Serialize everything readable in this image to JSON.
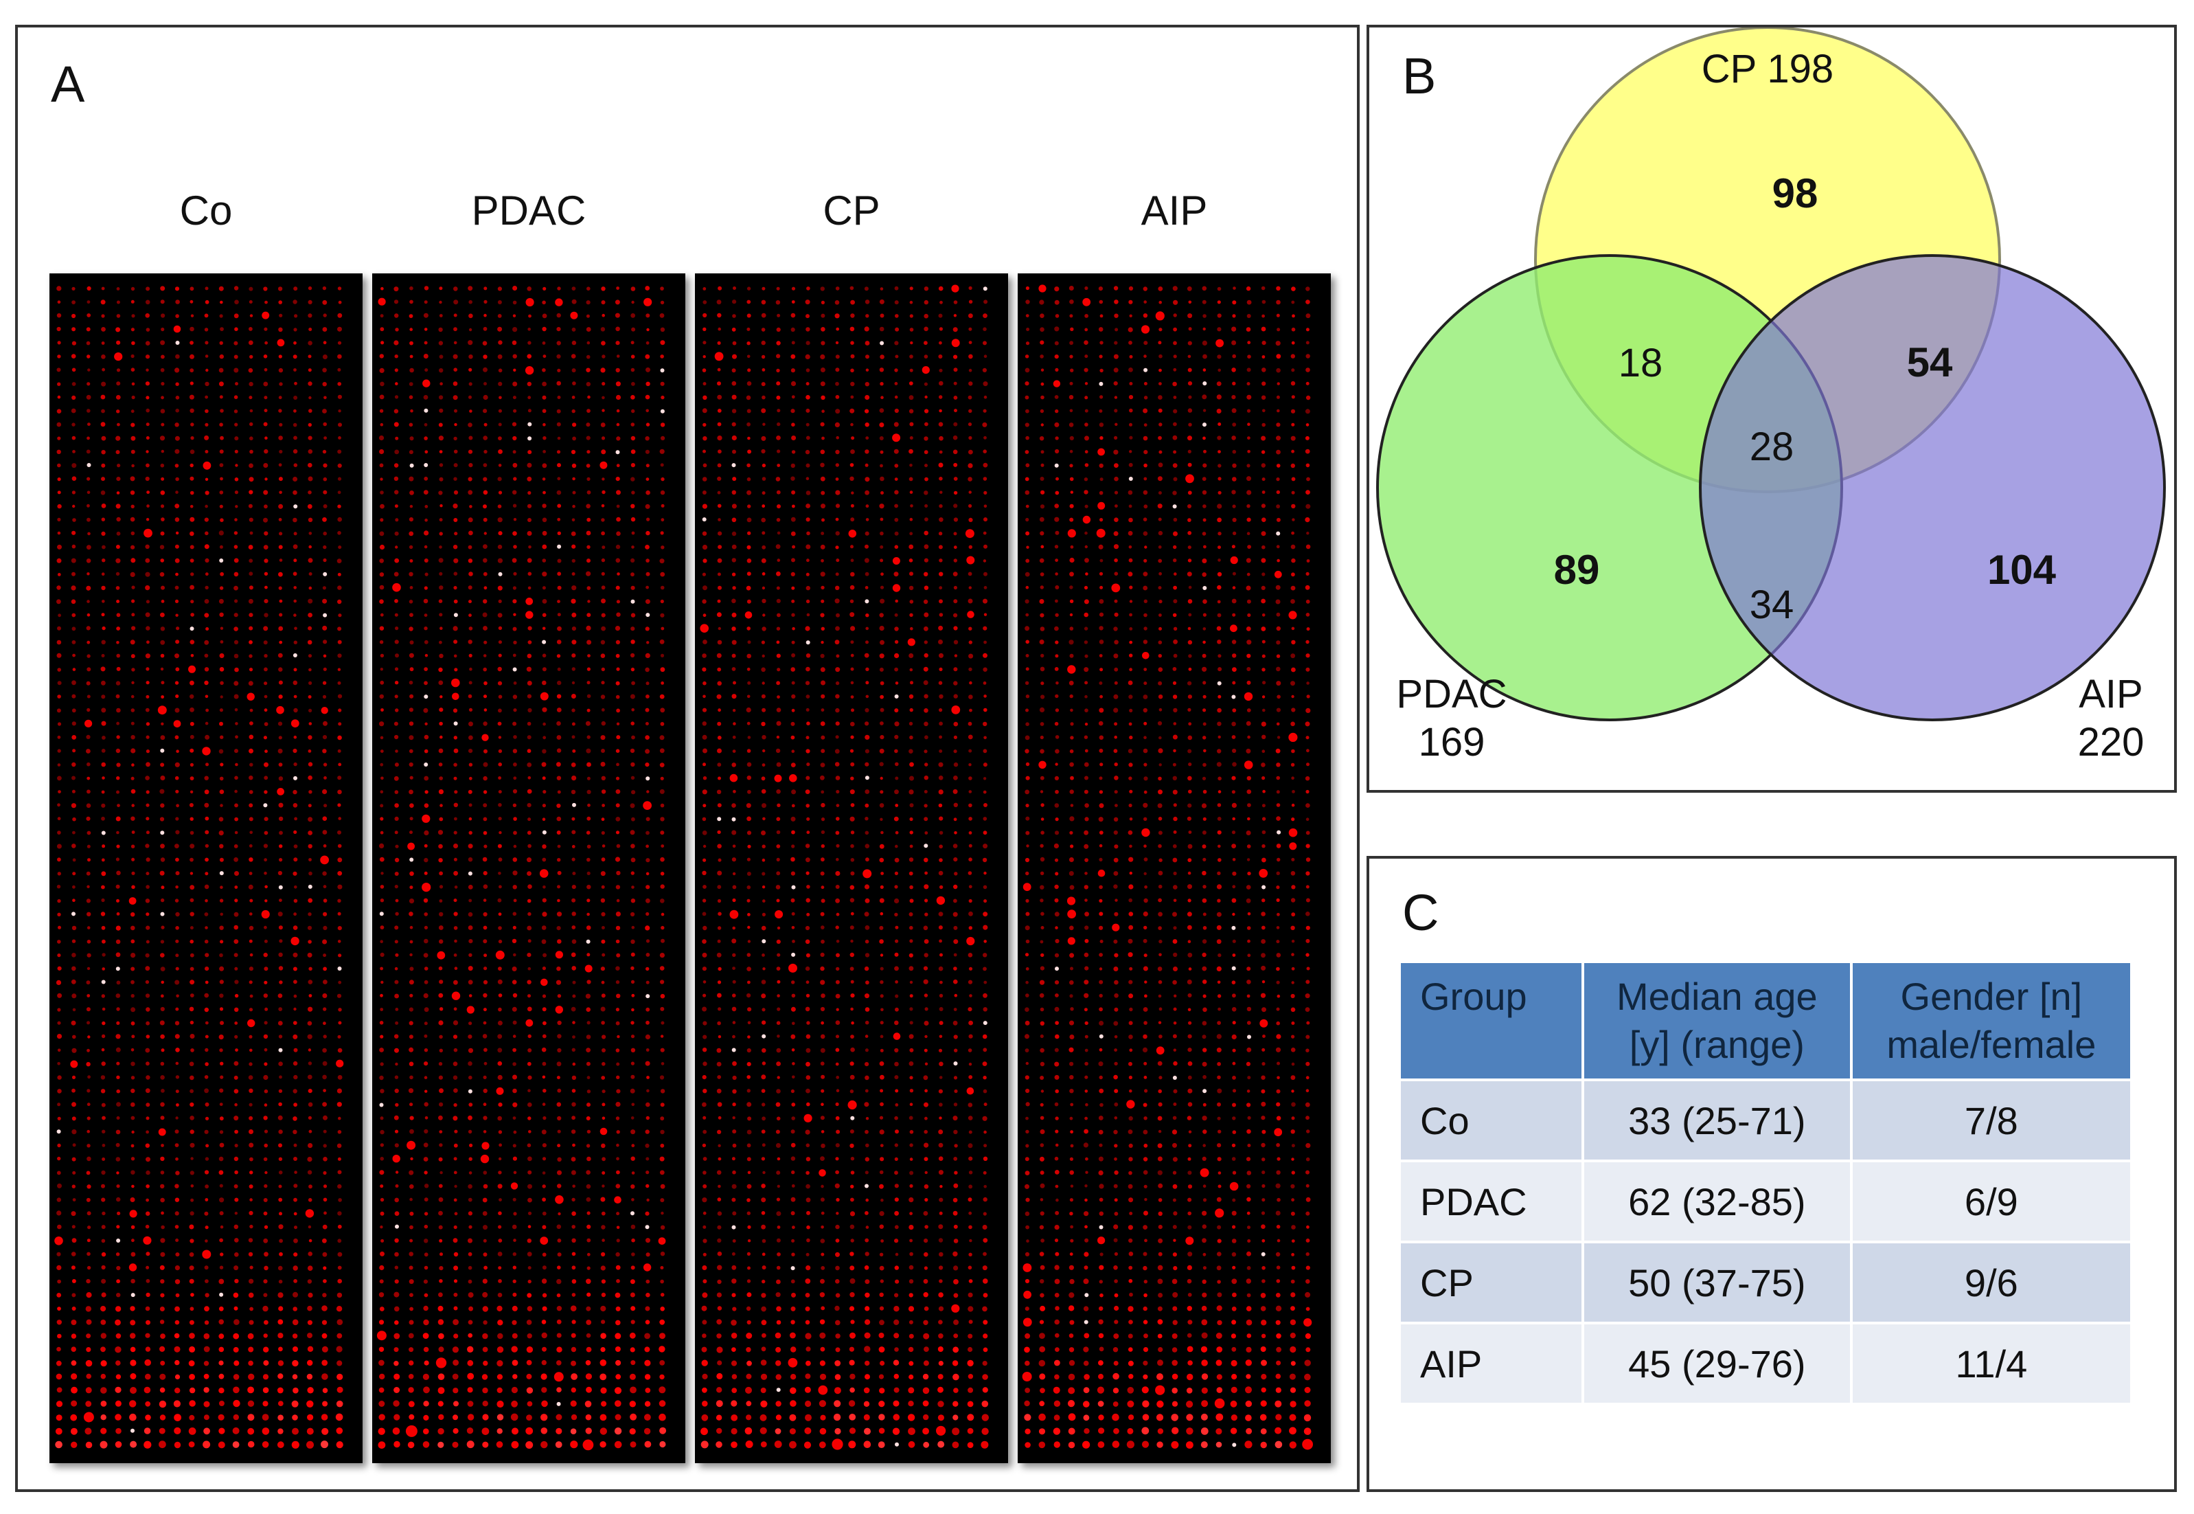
{
  "panel_a": {
    "letter": "A",
    "arrays": [
      {
        "label": "Co"
      },
      {
        "label": "PDAC"
      },
      {
        "label": "CP"
      },
      {
        "label": "AIP"
      }
    ]
  },
  "panel_b": {
    "letter": "B",
    "sets": {
      "cp": {
        "name": "CP 198",
        "color": "#ffff7a"
      },
      "pdac": {
        "name_line1": "PDAC",
        "name_line2": "169",
        "color": "#8fed6e"
      },
      "aip": {
        "name_line1": "AIP",
        "name_line2": "220",
        "color": "#9f97de"
      }
    },
    "regions": {
      "cp_only": "98",
      "pdac_only": "89",
      "aip_only": "104",
      "cp_pdac": "18",
      "cp_aip": "54",
      "pdac_aip": "34",
      "all": "28"
    }
  },
  "panel_c": {
    "letter": "C",
    "headers": {
      "group": "Group",
      "age_line1": "Median age",
      "age_line2": "[y] (range)",
      "gender_line1": "Gender [n]",
      "gender_line2": "male/female"
    },
    "rows": [
      {
        "group": "Co",
        "age": "33 (25-71)",
        "gender": "7/8"
      },
      {
        "group": "PDAC",
        "age": "62 (32-85)",
        "gender": "6/9"
      },
      {
        "group": "CP",
        "age": "50 (37-75)",
        "gender": "9/6"
      },
      {
        "group": "AIP",
        "age": "45 (29-76)",
        "gender": "11/4"
      }
    ],
    "header_color": "#4f81bd"
  }
}
